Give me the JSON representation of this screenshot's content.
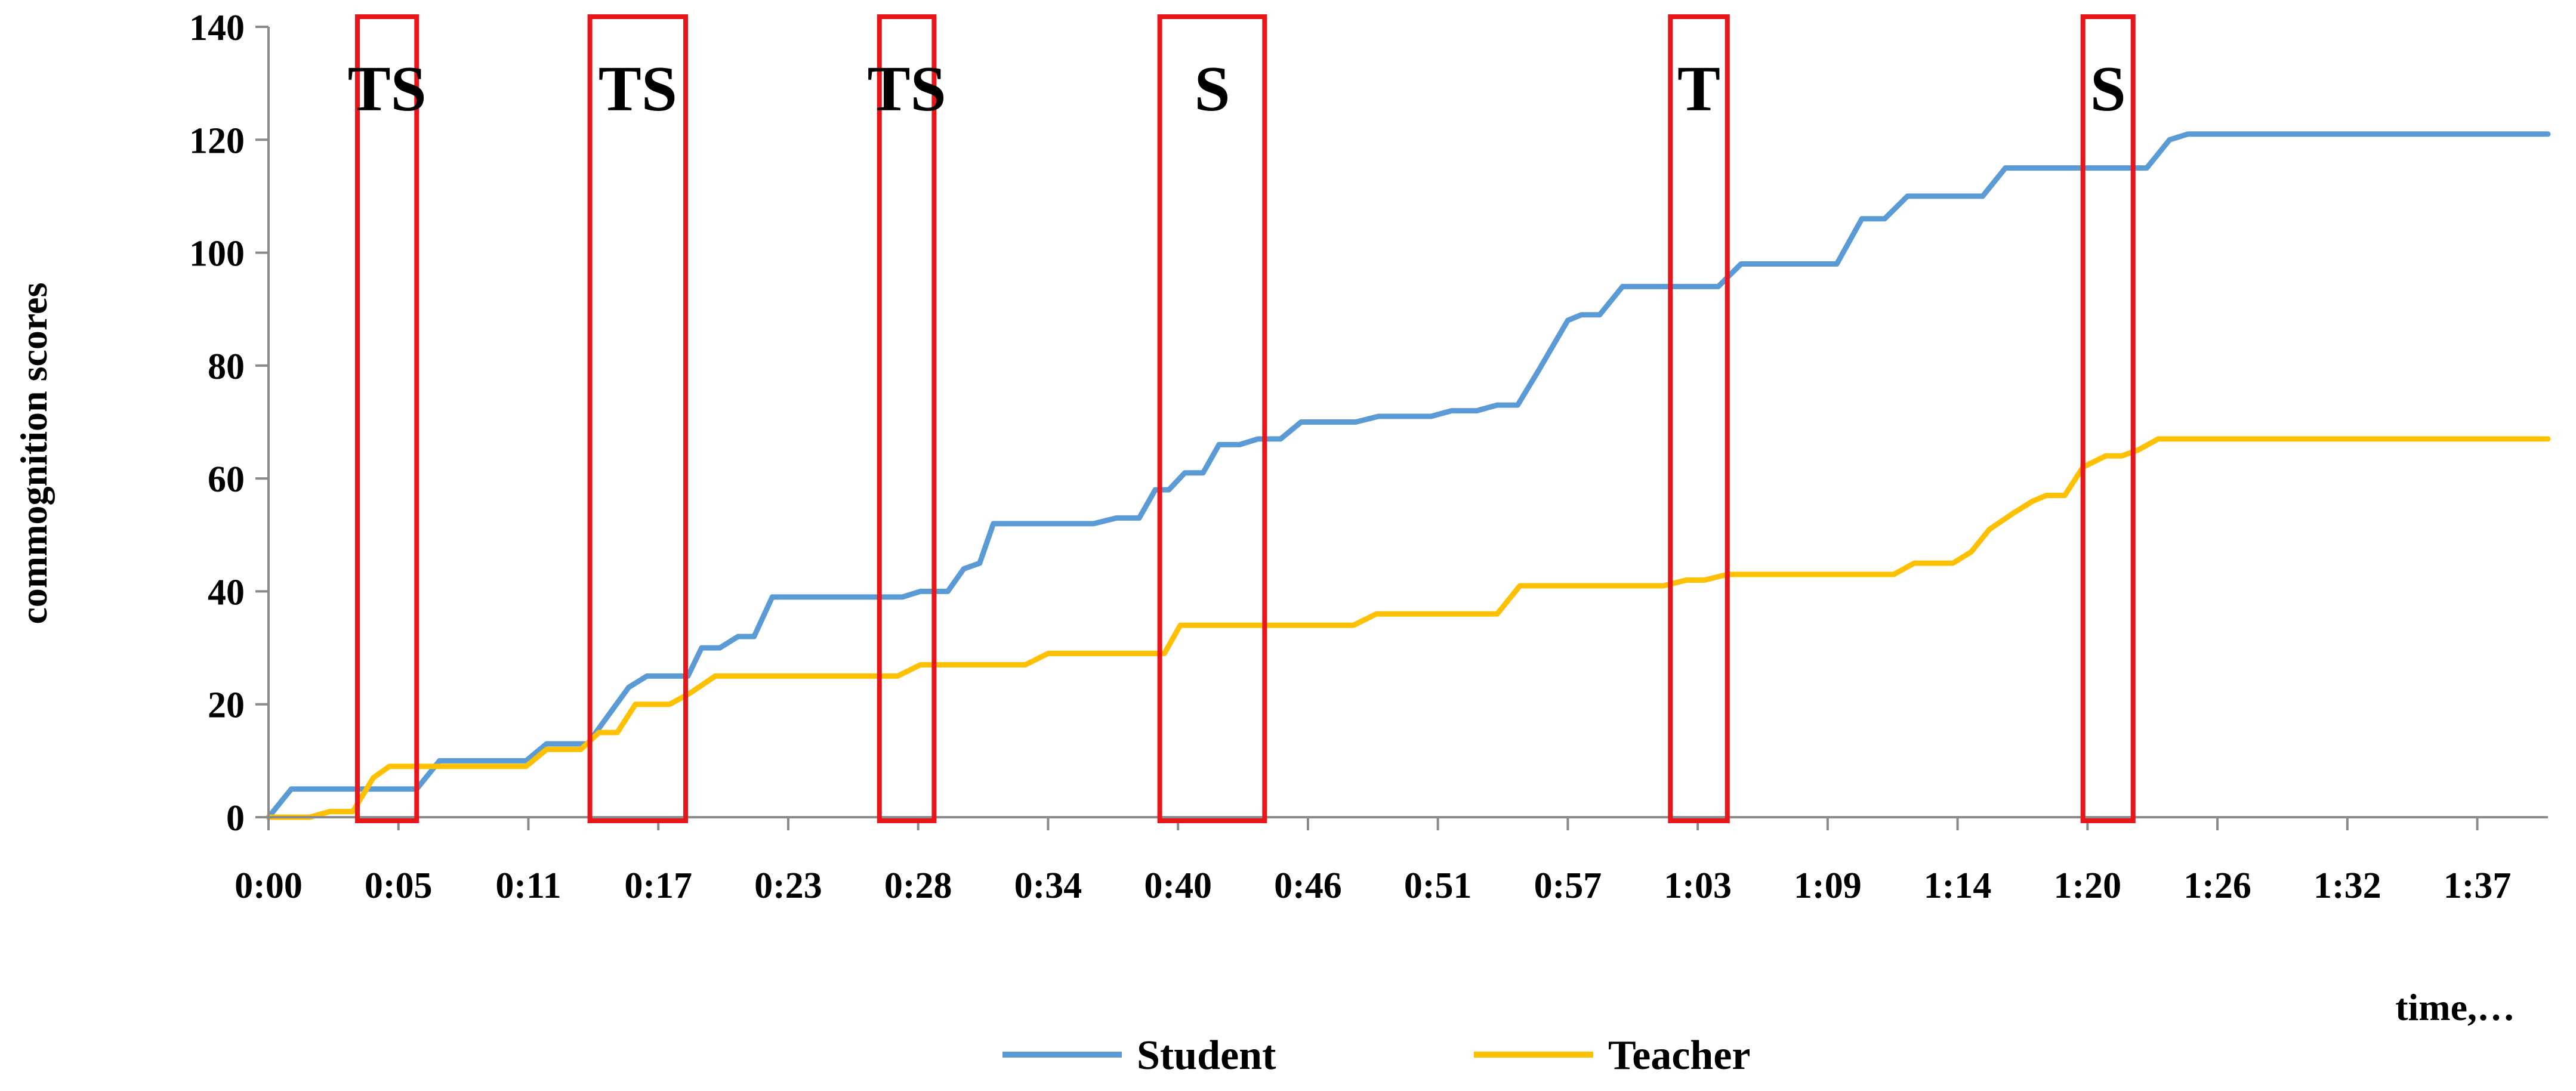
{
  "chart_data": {
    "type": "line",
    "title": "",
    "xlabel": "time,…",
    "ylabel": "commognition scores",
    "xlim": [
      0,
      100
    ],
    "ylim": [
      0,
      140
    ],
    "y_ticks": [
      0,
      20,
      40,
      60,
      80,
      100,
      120,
      140
    ],
    "x_ticks": [
      {
        "label": "0:00",
        "value": 0
      },
      {
        "label": "0:05",
        "value": 5.7
      },
      {
        "label": "0:11",
        "value": 11.4
      },
      {
        "label": "0:17",
        "value": 17.1
      },
      {
        "label": "0:23",
        "value": 22.8
      },
      {
        "label": "0:28",
        "value": 28.5
      },
      {
        "label": "0:34",
        "value": 34.2
      },
      {
        "label": "0:40",
        "value": 39.9
      },
      {
        "label": "0:46",
        "value": 45.6
      },
      {
        "label": "0:51",
        "value": 51.3
      },
      {
        "label": "0:57",
        "value": 57.0
      },
      {
        "label": "1:03",
        "value": 62.7
      },
      {
        "label": "1:09",
        "value": 68.4
      },
      {
        "label": "1:14",
        "value": 74.1
      },
      {
        "label": "1:20",
        "value": 79.8
      },
      {
        "label": "1:26",
        "value": 85.5
      },
      {
        "label": "1:32",
        "value": 91.2
      },
      {
        "label": "1:37",
        "value": 96.9
      }
    ],
    "grid": false,
    "legend_position": "bottom-center",
    "series": [
      {
        "name": "Student",
        "color": "#5B9BD5",
        "points": [
          [
            0,
            0
          ],
          [
            1,
            5
          ],
          [
            6.5,
            5
          ],
          [
            7.5,
            10
          ],
          [
            11.3,
            10
          ],
          [
            12.2,
            13
          ],
          [
            14,
            13
          ],
          [
            15.8,
            23
          ],
          [
            16.6,
            25
          ],
          [
            18.4,
            25
          ],
          [
            19,
            30
          ],
          [
            19.8,
            30
          ],
          [
            20.6,
            32
          ],
          [
            21.3,
            32
          ],
          [
            22.1,
            39
          ],
          [
            27.8,
            39
          ],
          [
            28.6,
            40
          ],
          [
            29.8,
            40
          ],
          [
            30.5,
            44
          ],
          [
            31.2,
            45
          ],
          [
            31.8,
            52
          ],
          [
            36.2,
            52
          ],
          [
            37.2,
            53
          ],
          [
            38.2,
            53
          ],
          [
            38.9,
            58
          ],
          [
            39.5,
            58
          ],
          [
            40.2,
            61
          ],
          [
            41,
            61
          ],
          [
            41.7,
            66
          ],
          [
            42.6,
            66
          ],
          [
            43.4,
            67
          ],
          [
            44.4,
            67
          ],
          [
            45.3,
            70
          ],
          [
            47.7,
            70
          ],
          [
            48.7,
            71
          ],
          [
            51,
            71
          ],
          [
            51.9,
            72
          ],
          [
            53,
            72
          ],
          [
            53.9,
            73
          ],
          [
            54.8,
            73
          ],
          [
            55.7,
            79
          ],
          [
            57,
            88
          ],
          [
            57.6,
            89
          ],
          [
            58.4,
            89
          ],
          [
            59.4,
            94
          ],
          [
            63.6,
            94
          ],
          [
            64.6,
            98
          ],
          [
            68.8,
            98
          ],
          [
            69.9,
            106
          ],
          [
            70.9,
            106
          ],
          [
            71.9,
            110
          ],
          [
            75.2,
            110
          ],
          [
            76.2,
            115
          ],
          [
            82.4,
            115
          ],
          [
            83.4,
            120
          ],
          [
            84.2,
            121
          ],
          [
            100,
            121
          ]
        ]
      },
      {
        "name": "Teacher",
        "color": "#FFC000",
        "points": [
          [
            0,
            0
          ],
          [
            1.8,
            0
          ],
          [
            2.7,
            1
          ],
          [
            3.7,
            1
          ],
          [
            4.6,
            7
          ],
          [
            5.3,
            9
          ],
          [
            6.3,
            9
          ],
          [
            7.2,
            9
          ],
          [
            11.3,
            9
          ],
          [
            12.2,
            12
          ],
          [
            13.7,
            12
          ],
          [
            14.5,
            15
          ],
          [
            15.3,
            15
          ],
          [
            16.1,
            20
          ],
          [
            17.6,
            20
          ],
          [
            18.5,
            22
          ],
          [
            19.6,
            25
          ],
          [
            27.6,
            25
          ],
          [
            28.6,
            27
          ],
          [
            33.2,
            27
          ],
          [
            34.2,
            29
          ],
          [
            39.3,
            29
          ],
          [
            40,
            34
          ],
          [
            47.6,
            34
          ],
          [
            48.6,
            36
          ],
          [
            53.9,
            36
          ],
          [
            54.9,
            41
          ],
          [
            61.2,
            41
          ],
          [
            62.2,
            42
          ],
          [
            63,
            42
          ],
          [
            64,
            43
          ],
          [
            71.3,
            43
          ],
          [
            72.2,
            45
          ],
          [
            73.9,
            45
          ],
          [
            74.7,
            47
          ],
          [
            75.5,
            51
          ],
          [
            76.6,
            54
          ],
          [
            77.4,
            56
          ],
          [
            78,
            57
          ],
          [
            78.8,
            57
          ],
          [
            79.6,
            62
          ],
          [
            80.6,
            64
          ],
          [
            81.3,
            64
          ],
          [
            82,
            65
          ],
          [
            82.9,
            67
          ],
          [
            100,
            67
          ]
        ]
      }
    ],
    "annotations": [
      {
        "label": "TS",
        "x_start": 3.9,
        "x_end": 6.5
      },
      {
        "label": "TS",
        "x_start": 14.1,
        "x_end": 18.3
      },
      {
        "label": "TS",
        "x_start": 26.8,
        "x_end": 29.2
      },
      {
        "label": "S",
        "x_start": 39.1,
        "x_end": 43.7
      },
      {
        "label": "T",
        "x_start": 61.5,
        "x_end": 64
      },
      {
        "label": "S",
        "x_start": 79.6,
        "x_end": 81.8
      }
    ],
    "annotation_color": "#E8161B"
  }
}
